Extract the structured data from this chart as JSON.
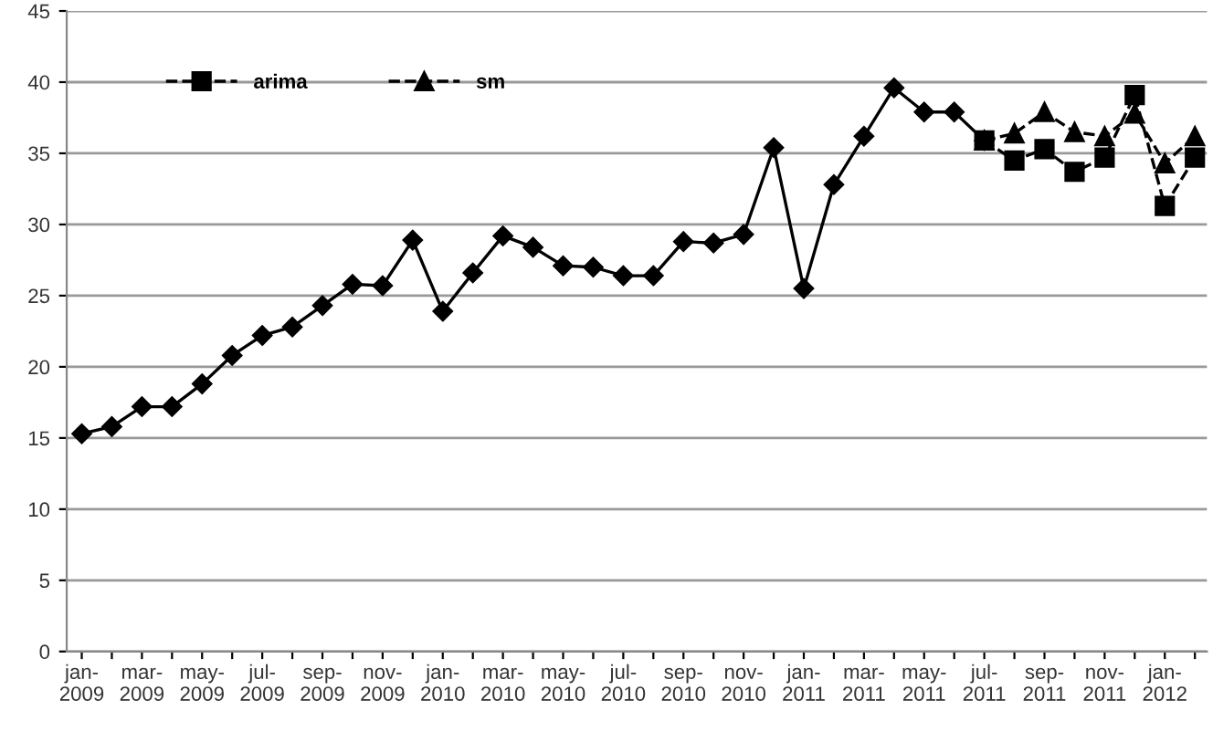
{
  "chart_data": {
    "type": "line",
    "categories": [
      "jan-\n2009",
      null,
      "mar-\n2009",
      null,
      "may-\n2009",
      null,
      "jul-\n2009",
      null,
      "sep-\n2009",
      null,
      "nov-\n2009",
      null,
      "jan-\n2010",
      null,
      "mar-\n2010",
      null,
      "may-\n2010",
      null,
      "jul-\n2010",
      null,
      "sep-\n2010",
      null,
      "nov-\n2010",
      null,
      "jan-\n2011",
      null,
      "mar-\n2011",
      null,
      "may-\n2011",
      null,
      "jul-\n2011",
      null,
      "sep-\n2011",
      null,
      "nov-\n2011",
      null,
      "jan-\n2012",
      null
    ],
    "series": [
      {
        "color": "#000000",
        "marker": "diamond",
        "line_style": "solid",
        "values": [
          15.3,
          15.8,
          17.2,
          17.2,
          18.8,
          20.8,
          22.2,
          22.8,
          24.3,
          25.8,
          25.7,
          28.9,
          23.9,
          26.6,
          29.2,
          28.4,
          27.1,
          27.0,
          26.4,
          26.4,
          28.8,
          28.7,
          29.3,
          35.4,
          25.5,
          32.8,
          36.2,
          39.6,
          37.9,
          37.9,
          35.9,
          null,
          null,
          null,
          null,
          null,
          null,
          null
        ]
      },
      {
        "name": "arima",
        "color": "#000000",
        "marker": "square",
        "line_style": "dashed",
        "values": [
          null,
          null,
          null,
          null,
          null,
          null,
          null,
          null,
          null,
          null,
          null,
          null,
          null,
          null,
          null,
          null,
          null,
          null,
          null,
          null,
          null,
          null,
          null,
          null,
          null,
          null,
          null,
          null,
          null,
          null,
          35.9,
          34.5,
          35.3,
          33.7,
          34.7,
          39.1,
          31.3,
          34.7
        ]
      },
      {
        "name": "sm",
        "color": "#000000",
        "marker": "triangle",
        "line_style": "dashed",
        "values": [
          null,
          null,
          null,
          null,
          null,
          null,
          null,
          null,
          null,
          null,
          null,
          null,
          null,
          null,
          null,
          null,
          null,
          null,
          null,
          null,
          null,
          null,
          null,
          null,
          null,
          null,
          null,
          null,
          null,
          null,
          35.9,
          36.4,
          37.9,
          36.5,
          36.2,
          37.8,
          34.3,
          36.2
        ]
      }
    ],
    "ylim": [
      0,
      45
    ],
    "yticks": [
      0,
      5,
      10,
      15,
      20,
      25,
      30,
      35,
      40,
      45
    ],
    "grid": "y",
    "legend": "top left"
  }
}
